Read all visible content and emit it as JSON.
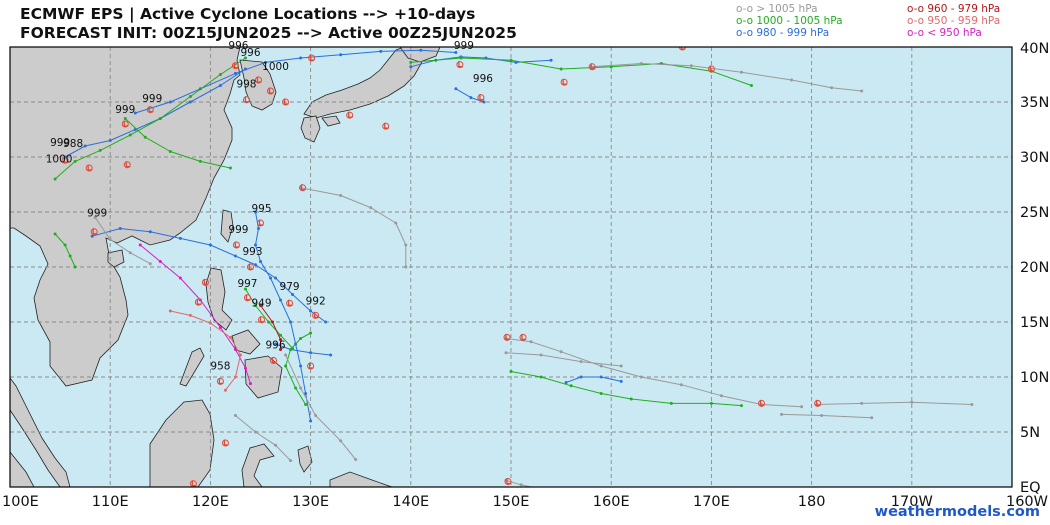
{
  "header": {
    "title_line1": "ECMWF EPS | Active Cyclone Locations --> +10-days",
    "title_line2": "FORECAST INIT: 00Z15JUN2025 --> Active 00Z25JUN2025"
  },
  "legend": [
    {
      "label": "o-o > 1005 hPa",
      "color": "#999999"
    },
    {
      "label": "o-o 1000 - 1005 hPa",
      "color": "#1fae1f"
    },
    {
      "label": "o-o 980 - 999 hPa",
      "color": "#2a6fdb"
    },
    {
      "label": "o-o 960 - 979 hPa",
      "color": "#b21818"
    },
    {
      "label": "o-o 950 - 959 hPa",
      "color": "#e06a6a"
    },
    {
      "label": "o-o < 950 hPa",
      "color": "#d61ec2"
    }
  ],
  "map": {
    "lon_range": [
      100,
      200
    ],
    "lat_range": [
      0,
      40
    ],
    "x_ticks": [
      "100E",
      "110E",
      "120E",
      "130E",
      "140E",
      "150E",
      "160E",
      "170E",
      "180",
      "170W",
      "160W"
    ],
    "y_ticks": [
      "EQ",
      "5N",
      "10N",
      "15N",
      "20N",
      "25N",
      "30N",
      "35N",
      "40N"
    ],
    "ocean_color": "#cbe9f2",
    "land_color": "#cccccc",
    "pressure_labels": [
      {
        "text": "996",
        "lon": 122.8,
        "lat": 39.8
      },
      {
        "text": "996",
        "lon": 124.0,
        "lat": 39.2
      },
      {
        "text": "1000",
        "lon": 126.5,
        "lat": 37.9
      },
      {
        "text": "998",
        "lon": 123.6,
        "lat": 36.3
      },
      {
        "text": "999",
        "lon": 145.3,
        "lat": 39.8
      },
      {
        "text": "996",
        "lon": 147.2,
        "lat": 36.8
      },
      {
        "text": "999",
        "lon": 111.5,
        "lat": 34.0
      },
      {
        "text": "999",
        "lon": 114.2,
        "lat": 35.0
      },
      {
        "text": "999",
        "lon": 105.0,
        "lat": 31.0
      },
      {
        "text": "988",
        "lon": 106.3,
        "lat": 30.9
      },
      {
        "text": "1000",
        "lon": 104.9,
        "lat": 29.5
      },
      {
        "text": "999",
        "lon": 108.7,
        "lat": 24.6
      },
      {
        "text": "995",
        "lon": 125.1,
        "lat": 25.0
      },
      {
        "text": "999",
        "lon": 122.8,
        "lat": 23.1
      },
      {
        "text": "993",
        "lon": 124.2,
        "lat": 21.1
      },
      {
        "text": "997",
        "lon": 123.7,
        "lat": 18.2
      },
      {
        "text": "979",
        "lon": 127.9,
        "lat": 17.9
      },
      {
        "text": "992",
        "lon": 130.5,
        "lat": 16.6
      },
      {
        "text": "949",
        "lon": 125.1,
        "lat": 16.4
      },
      {
        "text": "996",
        "lon": 126.5,
        "lat": 12.6
      },
      {
        "text": "958",
        "lon": 121.0,
        "lat": 10.7
      }
    ],
    "tracks": [
      {
        "color": "#2a6fdb",
        "points": [
          [
            108.2,
            22.8
          ],
          [
            111,
            23.5
          ],
          [
            114,
            23.2
          ],
          [
            117,
            22.6
          ],
          [
            120,
            22.0
          ],
          [
            122.5,
            21.0
          ],
          [
            124.5,
            20.2
          ],
          [
            126.5,
            19.0
          ],
          [
            128.2,
            17.5
          ],
          [
            130.0,
            16.0
          ],
          [
            131.5,
            15.0
          ]
        ]
      },
      {
        "color": "#2a6fdb",
        "points": [
          [
            112.5,
            34.0
          ],
          [
            116,
            35.0
          ],
          [
            119,
            36.2
          ],
          [
            122.5,
            37.6
          ],
          [
            125.5,
            38.6
          ],
          [
            129,
            39.0
          ],
          [
            133,
            39.3
          ],
          [
            137,
            39.6
          ],
          [
            141,
            39.7
          ],
          [
            144.5,
            39.5
          ]
        ]
      },
      {
        "color": "#2a6fdb",
        "points": [
          [
            105.5,
            30.0
          ],
          [
            107.5,
            31.0
          ],
          [
            110,
            31.5
          ],
          [
            112.5,
            32.5
          ],
          [
            115,
            33.5
          ],
          [
            118,
            35.0
          ],
          [
            121,
            36.5
          ],
          [
            123.5,
            38.0
          ]
        ]
      },
      {
        "color": "#2a6fdb",
        "points": [
          [
            140,
            38.2
          ],
          [
            142.5,
            38.8
          ],
          [
            145,
            39.1
          ],
          [
            147.5,
            39.0
          ],
          [
            150.5,
            38.6
          ],
          [
            154,
            38.8
          ]
        ]
      },
      {
        "color": "#2a6fdb",
        "points": [
          [
            124.5,
            25.0
          ],
          [
            124.8,
            23.5
          ],
          [
            124.5,
            22.0
          ],
          [
            125.0,
            20.5
          ],
          [
            126.0,
            19.0
          ],
          [
            127.0,
            17.0
          ],
          [
            128.0,
            15.0
          ],
          [
            128.5,
            13.0
          ],
          [
            129.0,
            11.0
          ],
          [
            129.5,
            8.5
          ],
          [
            130.0,
            6.0
          ]
        ]
      },
      {
        "color": "#2a6fdb",
        "points": [
          [
            126.5,
            13.0
          ],
          [
            128,
            12.5
          ],
          [
            130,
            12.2
          ],
          [
            132,
            12.0
          ]
        ]
      },
      {
        "color": "#2a6fdb",
        "points": [
          [
            155.5,
            9.5
          ],
          [
            157,
            10.0
          ],
          [
            159,
            10.0
          ],
          [
            161,
            9.6
          ]
        ]
      },
      {
        "color": "#2a6fdb",
        "points": [
          [
            144.5,
            36.2
          ],
          [
            146,
            35.4
          ],
          [
            147.3,
            35.0
          ]
        ]
      },
      {
        "color": "#1fae1f",
        "points": [
          [
            123.5,
            39.0
          ],
          [
            121,
            37.5
          ],
          [
            118,
            35.5
          ],
          [
            115,
            33.5
          ],
          [
            112,
            32.0
          ],
          [
            109,
            30.6
          ],
          [
            106.5,
            29.6
          ],
          [
            104.5,
            28.0
          ]
        ]
      },
      {
        "color": "#1fae1f",
        "points": [
          [
            104.5,
            23.0
          ],
          [
            105.5,
            22.0
          ],
          [
            106,
            21.0
          ],
          [
            106.5,
            20.0
          ]
        ]
      },
      {
        "color": "#1fae1f",
        "points": [
          [
            130.0,
            14.0
          ],
          [
            129,
            13.5
          ],
          [
            128,
            12.5
          ],
          [
            127.5,
            11.0
          ],
          [
            128.5,
            9.0
          ],
          [
            129.5,
            7.5
          ]
        ]
      },
      {
        "color": "#1fae1f",
        "points": [
          [
            140,
            38.6
          ],
          [
            145,
            39.0
          ],
          [
            150,
            38.8
          ],
          [
            155,
            38.0
          ],
          [
            160,
            38.2
          ],
          [
            165,
            38.5
          ],
          [
            170,
            37.8
          ],
          [
            174,
            36.5
          ]
        ]
      },
      {
        "color": "#1fae1f",
        "points": [
          [
            150.0,
            10.5
          ],
          [
            153,
            10.0
          ],
          [
            156,
            9.2
          ],
          [
            159,
            8.5
          ],
          [
            162,
            8.0
          ],
          [
            166,
            7.6
          ],
          [
            170,
            7.6
          ],
          [
            173,
            7.4
          ]
        ]
      },
      {
        "color": "#1fae1f",
        "points": [
          [
            111.5,
            33.5
          ],
          [
            113.5,
            31.8
          ],
          [
            116,
            30.5
          ],
          [
            119,
            29.6
          ],
          [
            122,
            29.0
          ]
        ]
      },
      {
        "color": "#1fae1f",
        "points": [
          [
            123.5,
            18.0
          ],
          [
            124.5,
            16.5
          ],
          [
            125.8,
            15.0
          ],
          [
            127,
            13.8
          ],
          [
            128.2,
            12.6
          ]
        ]
      },
      {
        "color": "#999999",
        "points": [
          [
            149.5,
            13.5
          ],
          [
            152,
            13.2
          ],
          [
            155,
            12.3
          ],
          [
            159,
            11.0
          ],
          [
            163,
            10.0
          ],
          [
            167,
            9.3
          ],
          [
            171,
            8.3
          ],
          [
            175,
            7.5
          ],
          [
            179,
            7.3
          ]
        ]
      },
      {
        "color": "#999999",
        "points": [
          [
            149.5,
            12.2
          ],
          [
            153,
            12.0
          ],
          [
            157,
            11.4
          ],
          [
            161,
            11.0
          ]
        ]
      },
      {
        "color": "#999999",
        "points": [
          [
            180.5,
            7.5
          ],
          [
            185,
            7.6
          ],
          [
            190,
            7.7
          ],
          [
            196,
            7.5
          ]
        ]
      },
      {
        "color": "#999999",
        "points": [
          [
            177,
            6.6
          ],
          [
            181,
            6.5
          ],
          [
            186,
            6.3
          ]
        ]
      },
      {
        "color": "#999999",
        "points": [
          [
            129,
            27.2
          ],
          [
            133,
            26.5
          ],
          [
            136,
            25.4
          ],
          [
            138.5,
            24.0
          ],
          [
            139.5,
            22.0
          ],
          [
            139.5,
            20.0
          ]
        ]
      },
      {
        "color": "#999999",
        "points": [
          [
            158,
            38.2
          ],
          [
            163,
            38.5
          ],
          [
            168,
            38.3
          ],
          [
            173,
            37.7
          ],
          [
            178,
            37.0
          ],
          [
            182,
            36.3
          ],
          [
            185,
            36.0
          ]
        ]
      },
      {
        "color": "#999999",
        "points": [
          [
            127.5,
            12.0
          ],
          [
            129,
            9.0
          ],
          [
            130.5,
            6.5
          ],
          [
            133,
            4.2
          ],
          [
            134.5,
            2.5
          ]
        ]
      },
      {
        "color": "#999999",
        "points": [
          [
            122.5,
            6.5
          ],
          [
            124.5,
            5.0
          ],
          [
            126.5,
            3.8
          ],
          [
            128,
            2.4
          ]
        ]
      },
      {
        "color": "#999999",
        "points": [
          [
            149.5,
            0.6
          ],
          [
            151,
            0.2
          ],
          [
            153,
            -0.2
          ]
        ]
      },
      {
        "color": "#999999",
        "points": [
          [
            108.5,
            24.5
          ],
          [
            110,
            22.5
          ],
          [
            112,
            21.3
          ],
          [
            114,
            20.3
          ]
        ]
      },
      {
        "color": "#d61ec2",
        "points": [
          [
            113,
            22.0
          ],
          [
            115,
            20.5
          ],
          [
            117,
            19.0
          ],
          [
            119,
            17.0
          ],
          [
            121,
            14.5
          ],
          [
            122.5,
            12.5
          ],
          [
            123.5,
            10.8
          ],
          [
            124,
            9.4
          ]
        ]
      },
      {
        "color": "#e06a6a",
        "points": [
          [
            116,
            16.0
          ],
          [
            118,
            15.6
          ],
          [
            120,
            14.9
          ],
          [
            122,
            13.6
          ],
          [
            123,
            12.0
          ],
          [
            122.5,
            10.0
          ],
          [
            121.5,
            8.8
          ]
        ]
      },
      {
        "color": "#b21818",
        "points": [
          [
            125.0,
            16.5
          ],
          [
            126.2,
            15.0
          ],
          [
            127.0,
            13.4
          ],
          [
            127.0,
            12.5
          ]
        ]
      }
    ],
    "storm_symbols": [
      {
        "lon": 122.5,
        "lat": 38.3,
        "color": "#e04a3a"
      },
      {
        "lon": 124.8,
        "lat": 37.0,
        "color": "#e04a3a"
      },
      {
        "lon": 126.0,
        "lat": 36.0,
        "color": "#e04a3a"
      },
      {
        "lon": 123.6,
        "lat": 35.2,
        "color": "#e04a3a"
      },
      {
        "lon": 144.9,
        "lat": 38.4,
        "color": "#e04a3a"
      },
      {
        "lon": 147.0,
        "lat": 35.4,
        "color": "#e04a3a"
      },
      {
        "lon": 111.5,
        "lat": 33.0,
        "color": "#e04a3a"
      },
      {
        "lon": 114.0,
        "lat": 34.3,
        "color": "#e04a3a"
      },
      {
        "lon": 105.5,
        "lat": 29.7,
        "color": "#e04a3a"
      },
      {
        "lon": 108.4,
        "lat": 23.2,
        "color": "#e04a3a"
      },
      {
        "lon": 125.0,
        "lat": 24.0,
        "color": "#e04a3a"
      },
      {
        "lon": 122.6,
        "lat": 22.0,
        "color": "#e04a3a"
      },
      {
        "lon": 124.0,
        "lat": 20.0,
        "color": "#e04a3a"
      },
      {
        "lon": 123.7,
        "lat": 17.2,
        "color": "#e04a3a"
      },
      {
        "lon": 127.9,
        "lat": 16.7,
        "color": "#e04a3a"
      },
      {
        "lon": 130.5,
        "lat": 15.6,
        "color": "#e04a3a"
      },
      {
        "lon": 125.1,
        "lat": 15.2,
        "color": "#e04a3a"
      },
      {
        "lon": 126.3,
        "lat": 11.5,
        "color": "#e04a3a"
      },
      {
        "lon": 121.0,
        "lat": 9.6,
        "color": "#e04a3a"
      },
      {
        "lon": 180.6,
        "lat": 7.6,
        "color": "#e04a3a"
      },
      {
        "lon": 149.6,
        "lat": 13.6,
        "color": "#e04a3a"
      },
      {
        "lon": 149.7,
        "lat": 0.5,
        "color": "#e04a3a"
      },
      {
        "lon": 167.1,
        "lat": 40.0,
        "color": "#e04a3a"
      },
      {
        "lon": 170.0,
        "lat": 38.0,
        "color": "#e04a3a"
      },
      {
        "lon": 158.1,
        "lat": 38.2,
        "color": "#e04a3a"
      },
      {
        "lon": 155.3,
        "lat": 36.8,
        "color": "#e04a3a"
      },
      {
        "lon": 119.5,
        "lat": 18.6,
        "color": "#e04a3a"
      },
      {
        "lon": 118.8,
        "lat": 16.8,
        "color": "#e04a3a"
      },
      {
        "lon": 107.9,
        "lat": 29.0,
        "color": "#e04a3a"
      },
      {
        "lon": 111.7,
        "lat": 29.3,
        "color": "#e04a3a"
      },
      {
        "lon": 118.3,
        "lat": 0.3,
        "color": "#e04a3a"
      },
      {
        "lon": 121.5,
        "lat": 4.0,
        "color": "#e04a3a"
      },
      {
        "lon": 130.0,
        "lat": 11.0,
        "color": "#e04a3a"
      },
      {
        "lon": 175.0,
        "lat": 7.6,
        "color": "#e04a3a"
      },
      {
        "lon": 129.2,
        "lat": 27.2,
        "color": "#e04a3a"
      },
      {
        "lon": 133.9,
        "lat": 33.8,
        "color": "#e04a3a"
      },
      {
        "lon": 137.5,
        "lat": 32.8,
        "color": "#e04a3a"
      },
      {
        "lon": 130.1,
        "lat": 39.0,
        "color": "#e04a3a"
      },
      {
        "lon": 127.5,
        "lat": 35.0,
        "color": "#e04a3a"
      },
      {
        "lon": 151.2,
        "lat": 13.6,
        "color": "#e04a3a"
      }
    ]
  },
  "credit": "weathermodels.com"
}
